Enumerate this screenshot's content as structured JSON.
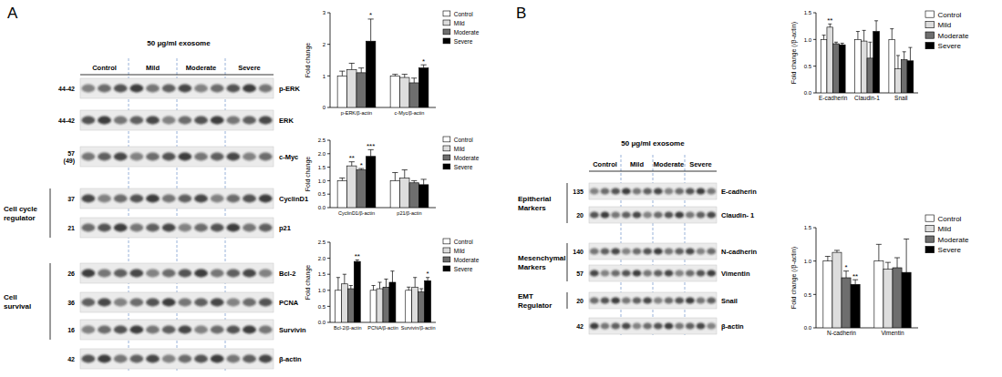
{
  "blots": [
    {
      "panel": "A",
      "treatment": "50 μg/ml exosome",
      "groups": [
        "Control",
        "Mild",
        "Moderate",
        "Severe"
      ],
      "sections": [
        {
          "rows": [
            {
              "protein": "p-ERK",
              "mw": "44-42"
            },
            {
              "protein": "ERK",
              "mw": "44-42"
            },
            {
              "protein": "c-Myc",
              "mw": "57 (49)"
            }
          ]
        },
        {
          "label": "Cell cycle regulator",
          "rows": [
            {
              "protein": "CyclinD1",
              "mw": "37"
            },
            {
              "protein": "p21",
              "mw": "21"
            }
          ]
        },
        {
          "label": "Cell survival",
          "rows": [
            {
              "protein": "Bcl-2",
              "mw": "26"
            },
            {
              "protein": "PCNA",
              "mw": "36"
            },
            {
              "protein": "Survivin",
              "mw": "16"
            }
          ]
        },
        {
          "rows": [
            {
              "protein": "β-actin",
              "mw": "42"
            }
          ]
        }
      ]
    },
    {
      "panel": "B",
      "treatment": "50 μg/ml exosome",
      "groups": [
        "Control",
        "Mild",
        "Moderate",
        "Severe"
      ],
      "sections": [
        {
          "label": "Epitherial Markers",
          "rows": [
            {
              "protein": "E-cadherin",
              "mw": "135"
            },
            {
              "protein": "Claudin- 1",
              "mw": "20"
            }
          ]
        },
        {
          "label": "Mesenchymal Markers",
          "rows": [
            {
              "protein": "N-cadherin",
              "mw": "140"
            },
            {
              "protein": "Vimentin",
              "mw": "57"
            }
          ]
        },
        {
          "label": "EMT Regulator",
          "rows": [
            {
              "protein": "Snail",
              "mw": "20"
            }
          ]
        },
        {
          "rows": [
            {
              "protein": "β-actin",
              "mw": "42"
            }
          ]
        }
      ]
    }
  ],
  "chart_data": [
    {
      "type": "bar",
      "categories": [
        "p-ERK/β-actin",
        "c-Myc/β-actin"
      ],
      "ylabel": "Fold change",
      "ylim": [
        0,
        3
      ],
      "yticks": [
        0,
        1,
        2,
        3
      ],
      "legend": "right",
      "series": [
        {
          "name": "Control",
          "color": "#ffffff",
          "values": [
            1.0,
            1.0
          ],
          "errors": [
            0.15,
            0.05
          ],
          "significance": [
            null,
            null
          ]
        },
        {
          "name": "Mild",
          "color": "#dddddd",
          "values": [
            1.2,
            0.95
          ],
          "errors": [
            0.2,
            0.1
          ],
          "significance": [
            null,
            null
          ]
        },
        {
          "name": "Moderate",
          "color": "#6e6e6e",
          "values": [
            1.1,
            0.78
          ],
          "errors": [
            0.15,
            0.15
          ],
          "significance": [
            null,
            null
          ]
        },
        {
          "name": "Severe",
          "color": "#000000",
          "values": [
            2.1,
            1.25
          ],
          "errors": [
            0.7,
            0.1
          ],
          "significance": [
            "*",
            "*"
          ]
        }
      ]
    },
    {
      "type": "bar",
      "categories": [
        "CyclinD1/β-actin",
        "p21/β-actin"
      ],
      "ylabel": "Fold change",
      "ylim": [
        0,
        2.5
      ],
      "yticks": [
        {
          "value": 0,
          "label": "0.0"
        },
        {
          "value": 0.5,
          "label": "0.5"
        },
        {
          "value": 1,
          "label": "1.0"
        },
        {
          "value": 1.5,
          "label": "1.5"
        },
        {
          "value": 2,
          "label": "2.0"
        },
        {
          "value": 2.5,
          "label": "2.5"
        }
      ],
      "legend": "right",
      "series": [
        {
          "name": "Control",
          "color": "#ffffff",
          "values": [
            1.0,
            1.0
          ],
          "errors": [
            0.1,
            0.3
          ],
          "significance": [
            null,
            null
          ]
        },
        {
          "name": "Mild",
          "color": "#dddddd",
          "values": [
            1.55,
            1.1
          ],
          "errors": [
            0.15,
            0.3
          ],
          "significance": [
            "**",
            null
          ]
        },
        {
          "name": "Moderate",
          "color": "#6e6e6e",
          "values": [
            1.4,
            0.92
          ],
          "errors": [
            0.05,
            0.08
          ],
          "significance": [
            "*",
            null
          ]
        },
        {
          "name": "Severe",
          "color": "#000000",
          "values": [
            1.9,
            0.85
          ],
          "errors": [
            0.25,
            0.2
          ],
          "significance": [
            "***",
            null
          ]
        }
      ]
    },
    {
      "type": "bar",
      "categories": [
        "Bcl-2/β-actin",
        "PCNA/β-actin",
        "Survivin/β-actin"
      ],
      "ylabel": "Fold change",
      "ylim": [
        0,
        2.5
      ],
      "yticks": [
        {
          "value": 0,
          "label": "0.0"
        },
        {
          "value": 0.5,
          "label": "0.5"
        },
        {
          "value": 1,
          "label": "1.0"
        },
        {
          "value": 1.5,
          "label": "1.5"
        },
        {
          "value": 2,
          "label": "2.0"
        },
        {
          "value": 2.5,
          "label": "2.5"
        }
      ],
      "legend": "right",
      "series": [
        {
          "name": "Control",
          "color": "#ffffff",
          "values": [
            1.0,
            1.0,
            1.0
          ],
          "errors": [
            0.4,
            0.15,
            0.1
          ],
          "significance": [
            null,
            null,
            null
          ]
        },
        {
          "name": "Mild",
          "color": "#dddddd",
          "values": [
            1.2,
            1.05,
            1.1
          ],
          "errors": [
            0.3,
            0.2,
            0.3
          ],
          "significance": [
            null,
            null,
            null
          ]
        },
        {
          "name": "Moderate",
          "color": "#6e6e6e",
          "values": [
            1.05,
            1.1,
            0.95
          ],
          "errors": [
            0.1,
            0.25,
            0.1
          ],
          "significance": [
            null,
            null,
            null
          ]
        },
        {
          "name": "Severe",
          "color": "#000000",
          "values": [
            1.9,
            1.25,
            1.3
          ],
          "errors": [
            0.05,
            0.35,
            0.1
          ],
          "significance": [
            "**",
            null,
            "*"
          ]
        }
      ]
    },
    {
      "type": "bar",
      "categories": [
        "E-cadherin",
        "Claudin-1",
        "Snail"
      ],
      "ylabel": "Fold change (/β-actin)",
      "ylim": [
        0,
        1.5
      ],
      "yticks": [
        {
          "value": 0,
          "label": "0.0"
        },
        {
          "value": 0.5,
          "label": "0.5"
        },
        {
          "value": 1,
          "label": "1.0"
        },
        {
          "value": 1.5,
          "label": "1.5"
        }
      ],
      "legend": "right",
      "series": [
        {
          "name": "Control",
          "color": "#ffffff",
          "values": [
            1.0,
            1.0,
            1.0
          ],
          "errors": [
            0.08,
            0.15,
            0.2
          ],
          "significance": [
            null,
            null,
            null
          ]
        },
        {
          "name": "Mild",
          "color": "#dddddd",
          "values": [
            1.23,
            0.97,
            0.45
          ],
          "errors": [
            0.06,
            0.2,
            0.25
          ],
          "significance": [
            "**",
            null,
            null
          ]
        },
        {
          "name": "Moderate",
          "color": "#6e6e6e",
          "values": [
            0.92,
            0.65,
            0.62
          ],
          "errors": [
            0.03,
            0.3,
            0.15
          ],
          "significance": [
            null,
            null,
            null
          ]
        },
        {
          "name": "Severe",
          "color": "#000000",
          "values": [
            0.9,
            1.15,
            0.6
          ],
          "errors": [
            0.03,
            0.2,
            0.25
          ],
          "significance": [
            null,
            null,
            null
          ]
        }
      ]
    },
    {
      "type": "bar",
      "categories": [
        "N-cadherin",
        "Vimentin"
      ],
      "ylabel": "Fold change (/β-actin)",
      "ylim": [
        0,
        1.5
      ],
      "yticks": [
        {
          "value": 0,
          "label": "0.0"
        },
        {
          "value": 0.5,
          "label": "0.5"
        },
        {
          "value": 1,
          "label": "1.0"
        },
        {
          "value": 1.5,
          "label": "1.5"
        }
      ],
      "legend": "right",
      "series": [
        {
          "name": "Control",
          "color": "#ffffff",
          "values": [
            1.0,
            1.0
          ],
          "errors": [
            0.07,
            0.25
          ],
          "significance": [
            null,
            null
          ]
        },
        {
          "name": "Mild",
          "color": "#dddddd",
          "values": [
            1.13,
            0.88
          ],
          "errors": [
            0.03,
            0.1
          ],
          "significance": [
            null,
            null
          ]
        },
        {
          "name": "Moderate",
          "color": "#6e6e6e",
          "values": [
            0.75,
            0.9
          ],
          "errors": [
            0.1,
            0.15
          ],
          "significance": [
            "*",
            null
          ]
        },
        {
          "name": "Severe",
          "color": "#000000",
          "values": [
            0.65,
            0.83
          ],
          "errors": [
            0.07,
            0.5
          ],
          "significance": [
            "**",
            null
          ]
        }
      ]
    }
  ]
}
